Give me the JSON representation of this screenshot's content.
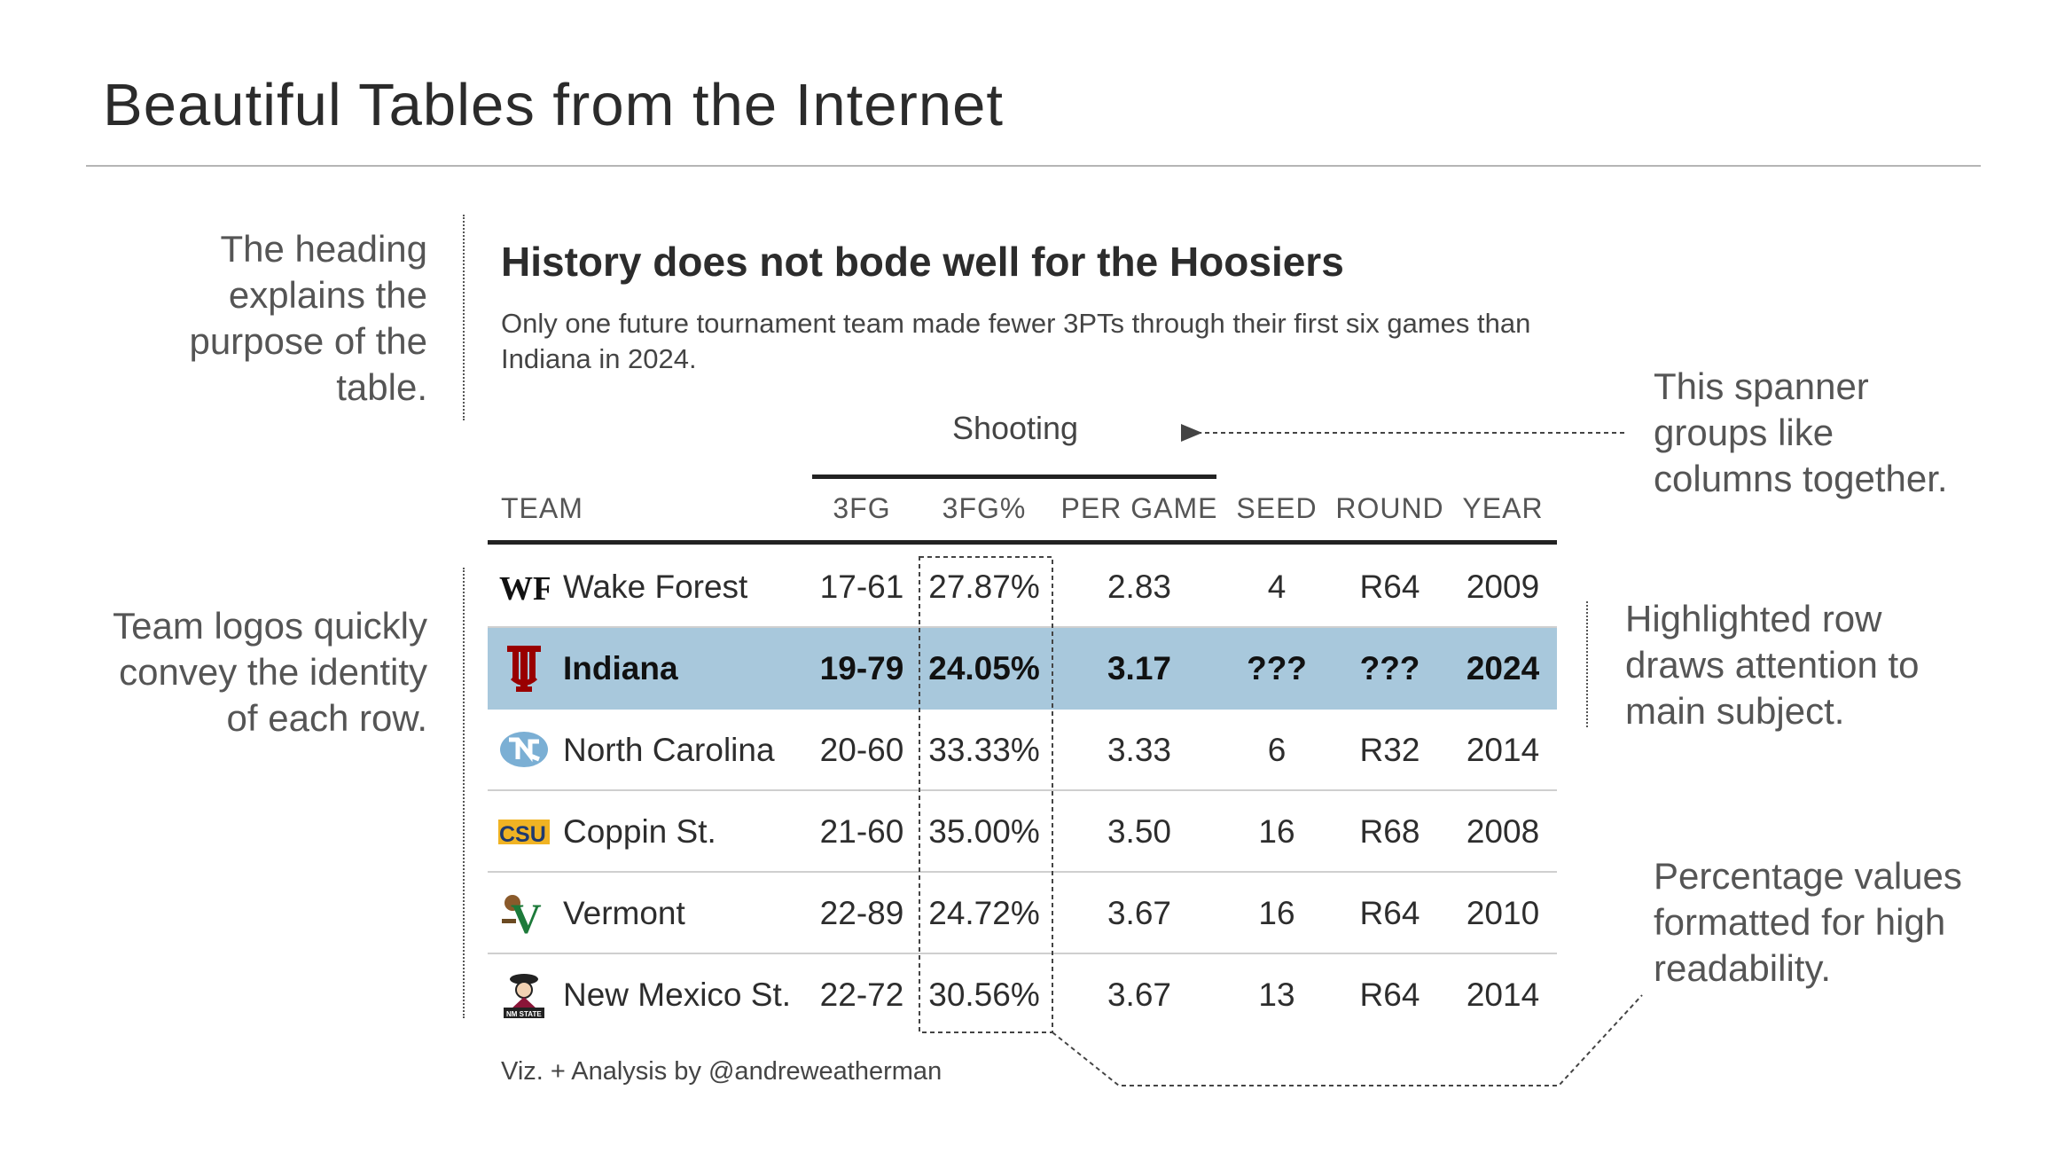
{
  "slide": {
    "title": "Beautiful Tables from the Internet"
  },
  "annotations": {
    "heading": [
      "The heading",
      "explains the",
      "purpose of the",
      "table."
    ],
    "logos": [
      "Team logos quickly",
      "convey the identity",
      "of each row."
    ],
    "spanner": [
      "This spanner",
      "groups like",
      "columns together."
    ],
    "highlight": [
      "Highlighted row",
      "draws attention to",
      "main subject."
    ],
    "percent": [
      "Percentage values",
      "formatted for high",
      "readability."
    ]
  },
  "table": {
    "title": "History does not bode well for the Hoosiers",
    "subtitle": "Only one future tournament team made fewer 3PTs through their first six games than Indiana in 2024.",
    "spanner": "Shooting",
    "columns": [
      "TEAM",
      "3FG",
      "3FG%",
      "PER GAME",
      "SEED",
      "ROUND",
      "YEAR"
    ],
    "rows": [
      {
        "team": "Wake Forest",
        "fg3": "17-61",
        "pct": "27.87%",
        "per_game": "2.83",
        "seed": "4",
        "round": "R64",
        "year": "2009",
        "logo": "wake-forest-logo"
      },
      {
        "team": "Indiana",
        "fg3": "19-79",
        "pct": "24.05%",
        "per_game": "3.17",
        "seed": "???",
        "round": "???",
        "year": "2024",
        "logo": "indiana-logo",
        "highlight": true
      },
      {
        "team": "North Carolina",
        "fg3": "20-60",
        "pct": "33.33%",
        "per_game": "3.33",
        "seed": "6",
        "round": "R32",
        "year": "2014",
        "logo": "north-carolina-logo"
      },
      {
        "team": "Coppin St.",
        "fg3": "21-60",
        "pct": "35.00%",
        "per_game": "3.50",
        "seed": "16",
        "round": "R68",
        "year": "2008",
        "logo": "coppin-state-logo"
      },
      {
        "team": "Vermont",
        "fg3": "22-89",
        "pct": "24.72%",
        "per_game": "3.67",
        "seed": "16",
        "round": "R64",
        "year": "2010",
        "logo": "vermont-logo"
      },
      {
        "team": "New Mexico St.",
        "fg3": "22-72",
        "pct": "30.56%",
        "per_game": "3.67",
        "seed": "13",
        "round": "R64",
        "year": "2014",
        "logo": "new-mexico-state-logo"
      }
    ],
    "credit": "Viz. + Analysis by @andreweatherman",
    "logo_text": {
      "wake_forest": "WF",
      "coppin": "CSU",
      "vermont": "V",
      "nmsu": "NM STATE"
    }
  },
  "colors": {
    "highlight_row": "#a8c8dc",
    "indiana_crimson": "#990000",
    "unc_blue": "#7BAFD4",
    "coppin_blue": "#1f3a6e",
    "coppin_gold": "#f0b323",
    "vermont_green": "#1d7a3a"
  }
}
